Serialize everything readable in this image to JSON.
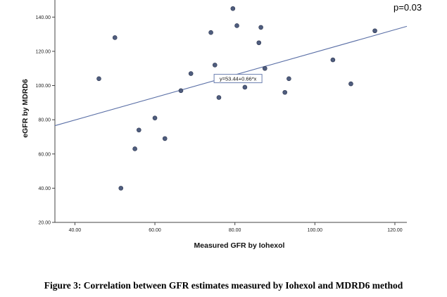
{
  "chart_data": {
    "type": "scatter",
    "xlabel": "Measured GFR by Iohexol",
    "ylabel": "eGFR by MDRD6",
    "xlim": [
      35,
      123
    ],
    "ylim": [
      20,
      150
    ],
    "x_ticks": [
      "40.00",
      "60.00",
      "80.00",
      "100.00",
      "120.00"
    ],
    "y_ticks": [
      "20.00",
      "40.00",
      "60.00",
      "80.00",
      "100.00",
      "120.00",
      "140.00"
    ],
    "points": [
      {
        "x": 46,
        "y": 104
      },
      {
        "x": 50,
        "y": 128
      },
      {
        "x": 51.5,
        "y": 40
      },
      {
        "x": 55,
        "y": 63
      },
      {
        "x": 56,
        "y": 74
      },
      {
        "x": 60,
        "y": 81
      },
      {
        "x": 62.5,
        "y": 69
      },
      {
        "x": 66.5,
        "y": 97
      },
      {
        "x": 69,
        "y": 107
      },
      {
        "x": 74,
        "y": 131
      },
      {
        "x": 75,
        "y": 112
      },
      {
        "x": 76,
        "y": 93
      },
      {
        "x": 79.5,
        "y": 145
      },
      {
        "x": 80.5,
        "y": 135
      },
      {
        "x": 82.5,
        "y": 99
      },
      {
        "x": 86,
        "y": 125
      },
      {
        "x": 86.5,
        "y": 134
      },
      {
        "x": 87.5,
        "y": 110
      },
      {
        "x": 92.5,
        "y": 96
      },
      {
        "x": 93.5,
        "y": 104
      },
      {
        "x": 104.5,
        "y": 115
      },
      {
        "x": 109,
        "y": 101
      },
      {
        "x": 115,
        "y": 132
      }
    ],
    "fit_line": {
      "intercept": 53.44,
      "slope": 0.66,
      "equation": "y=53.44+0.66*x"
    },
    "annotation": "p=0.03",
    "point_color": "#4f5d7e",
    "line_color": "#5a6fa6"
  },
  "caption": "Figure 3: Correlation between GFR estimates measured by Iohexol and MDRD6 method"
}
